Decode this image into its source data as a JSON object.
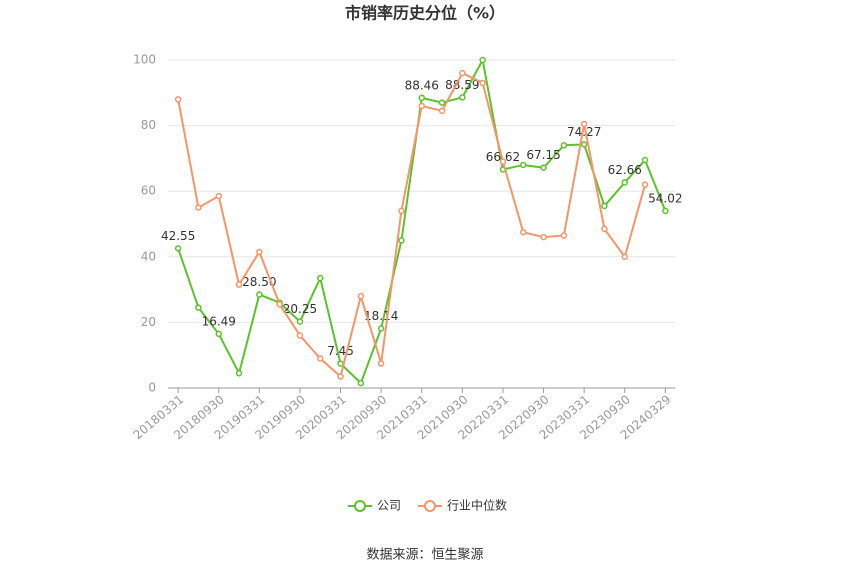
{
  "chart_data": {
    "type": "line",
    "title": "市销率历史分位（%）",
    "source": "数据来源：恒生聚源",
    "categories": [
      "20180331",
      null,
      "20180930",
      null,
      "20190331",
      null,
      "20190930",
      null,
      "20200331",
      null,
      "20200930",
      null,
      "20210331",
      null,
      "20210930",
      null,
      "20220331",
      null,
      "20220930",
      null,
      "20230331",
      null,
      "20230930",
      null,
      "20240329"
    ],
    "series": [
      {
        "name": "公司",
        "color": "#5bc22c",
        "values": [
          42.55,
          24.5,
          16.49,
          4.5,
          28.5,
          26,
          20.25,
          33.5,
          7.45,
          1.5,
          18.14,
          45,
          88.46,
          87,
          88.59,
          100,
          66.62,
          68,
          67.15,
          74,
          74.27,
          55.5,
          62.66,
          69.5,
          54.02
        ],
        "value_labels": [
          "42.55",
          null,
          "16.49",
          null,
          "28.50",
          null,
          "20.25",
          null,
          "7.45",
          null,
          "18.14",
          null,
          "88.46",
          null,
          "88.59",
          null,
          "66.62",
          null,
          "67.15",
          null,
          "74.27",
          null,
          "62.66",
          null,
          "54.02"
        ]
      },
      {
        "name": "行业中位数",
        "color": "#f4956a",
        "values": [
          88,
          55,
          58.5,
          31.5,
          41.5,
          25.5,
          16,
          9,
          3.5,
          28,
          7.5,
          54,
          86,
          84.5,
          96,
          93,
          69,
          47.5,
          46,
          46.5,
          80.5,
          48.5,
          40,
          62,
          null
        ]
      }
    ],
    "ylim": [
      0,
      100
    ],
    "yticks": [
      0,
      20,
      40,
      60,
      80,
      100
    ],
    "grid": true,
    "legend": "bottom"
  }
}
